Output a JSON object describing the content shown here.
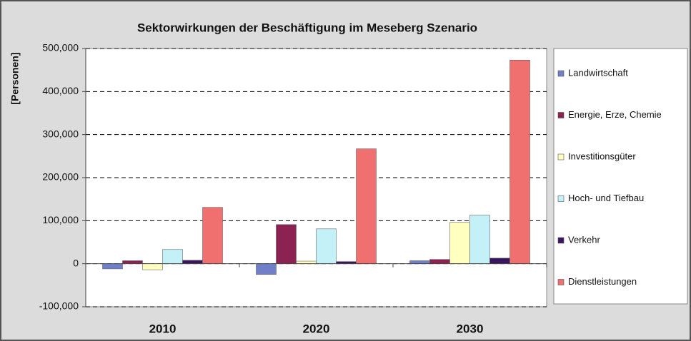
{
  "chart_data": {
    "type": "bar",
    "title": "Sektorwirkungen der Beschäftigung im Meseberg Szenario",
    "y_label": "[Personen]",
    "categories": [
      "2010",
      "2020",
      "2030"
    ],
    "series": [
      {
        "name": "Landwirtschaft",
        "color": "#7080c8",
        "values": [
          -12000,
          -25000,
          7000
        ]
      },
      {
        "name": "Energie, Erze, Chemie",
        "color": "#8b2252",
        "values": [
          7000,
          91000,
          10000
        ]
      },
      {
        "name": "Investitionsgüter",
        "color": "#ffffc0",
        "values": [
          -14000,
          6000,
          96000
        ]
      },
      {
        "name": "Hoch- und Tiefbau",
        "color": "#c4f0f8",
        "values": [
          33000,
          81000,
          113000
        ]
      },
      {
        "name": "Verkehr",
        "color": "#3a1460",
        "values": [
          8000,
          5000,
          13000
        ]
      },
      {
        "name": "Dienstleistungen",
        "color": "#f07070",
        "values": [
          131000,
          267000,
          473000
        ]
      }
    ],
    "ylim": [
      -100000,
      500000
    ],
    "yticks": [
      {
        "value": -100000,
        "label": "-100,000"
      },
      0,
      {
        "value": 100000,
        "label": "100,000"
      },
      {
        "value": 200000,
        "label": "200,000"
      },
      {
        "value": 300000,
        "label": "300,000"
      },
      {
        "value": 400000,
        "label": "400,000"
      },
      {
        "value": 500000,
        "label": "500,000"
      }
    ],
    "grid": true,
    "legend": "right"
  }
}
